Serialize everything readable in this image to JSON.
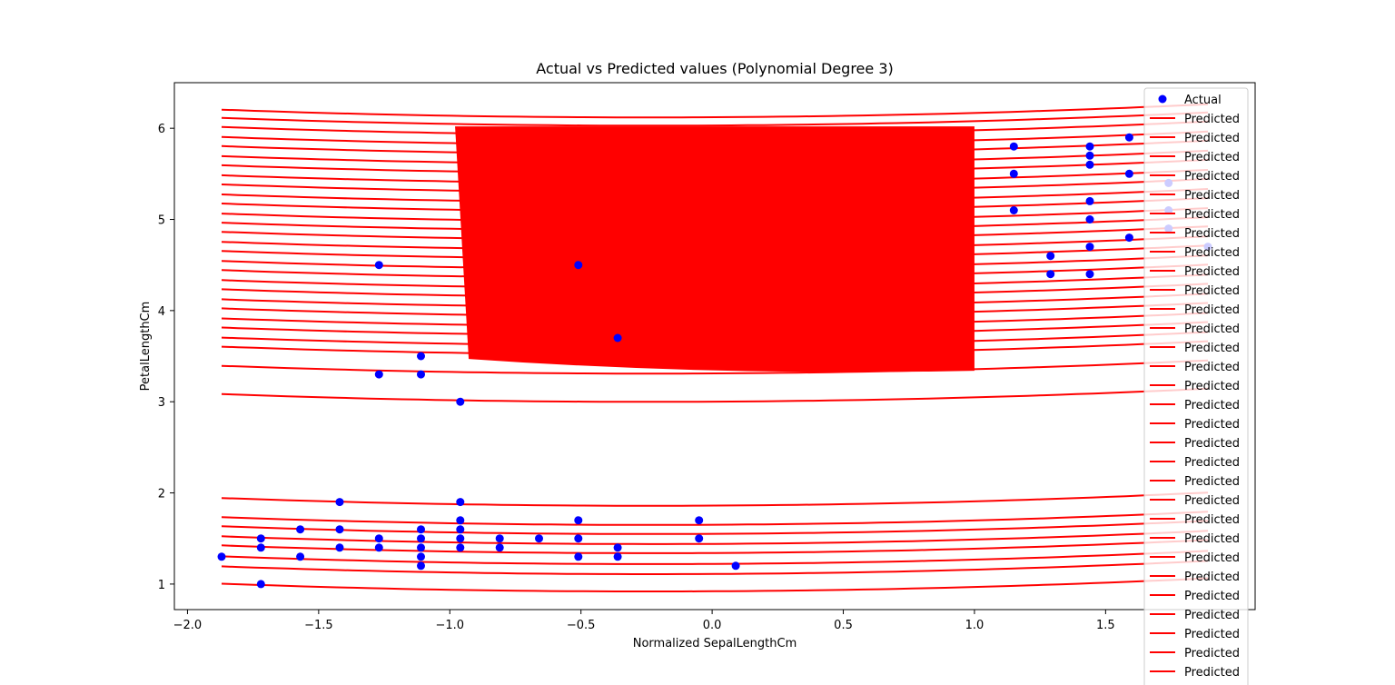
{
  "chart_data": {
    "type": "scatter",
    "title": "Actual vs Predicted values (Polynomial Degree 3)",
    "xlabel": "Normalized SepalLengthCm",
    "ylabel": "PetalLengthCm",
    "xlim": [
      -2.05,
      2.07
    ],
    "ylim": [
      0.72,
      6.5
    ],
    "xticks": [
      -2.0,
      -1.5,
      -1.0,
      -0.5,
      0.0,
      0.5,
      1.0,
      1.5
    ],
    "xtick_labels": [
      "−2.0",
      "−1.5",
      "−1.0",
      "−0.5",
      "0.0",
      "0.5",
      "1.0",
      "1.5"
    ],
    "yticks": [
      1,
      2,
      3,
      4,
      5,
      6
    ],
    "ytick_labels": [
      "1",
      "2",
      "3",
      "4",
      "5",
      "6"
    ],
    "grid": false,
    "legend_position": "top-right",
    "series": [
      {
        "name": "Actual",
        "kind": "scatter",
        "color": "#0000ff",
        "points": [
          [
            -1.87,
            1.3
          ],
          [
            -1.72,
            1.5
          ],
          [
            -1.72,
            1.4
          ],
          [
            -1.72,
            1.0
          ],
          [
            -1.57,
            1.6
          ],
          [
            -1.57,
            1.3
          ],
          [
            -1.42,
            1.9
          ],
          [
            -1.42,
            1.6
          ],
          [
            -1.42,
            1.4
          ],
          [
            -1.27,
            4.5
          ],
          [
            -1.27,
            3.3
          ],
          [
            -1.27,
            1.5
          ],
          [
            -1.27,
            1.4
          ],
          [
            -1.11,
            3.5
          ],
          [
            -1.11,
            3.3
          ],
          [
            -1.11,
            1.6
          ],
          [
            -1.11,
            1.5
          ],
          [
            -1.11,
            1.4
          ],
          [
            -1.11,
            1.3
          ],
          [
            -1.11,
            1.2
          ],
          [
            -0.96,
            3.0
          ],
          [
            -0.96,
            1.9
          ],
          [
            -0.96,
            1.7
          ],
          [
            -0.96,
            1.6
          ],
          [
            -0.96,
            1.5
          ],
          [
            -0.96,
            1.4
          ],
          [
            -0.81,
            1.5
          ],
          [
            -0.81,
            1.4
          ],
          [
            -0.66,
            1.5
          ],
          [
            -0.51,
            4.5
          ],
          [
            -0.51,
            1.7
          ],
          [
            -0.51,
            1.5
          ],
          [
            -0.51,
            1.3
          ],
          [
            -0.36,
            3.7
          ],
          [
            -0.36,
            1.4
          ],
          [
            -0.36,
            1.3
          ],
          [
            -0.05,
            1.7
          ],
          [
            -0.05,
            1.5
          ],
          [
            0.09,
            1.2
          ],
          [
            1.15,
            5.8
          ],
          [
            1.15,
            5.5
          ],
          [
            1.15,
            5.1
          ],
          [
            1.29,
            4.6
          ],
          [
            1.29,
            4.4
          ],
          [
            1.44,
            5.8
          ],
          [
            1.44,
            5.7
          ],
          [
            1.44,
            5.6
          ],
          [
            1.44,
            5.2
          ],
          [
            1.44,
            5.0
          ],
          [
            1.44,
            4.7
          ],
          [
            1.44,
            4.4
          ],
          [
            1.59,
            5.9
          ],
          [
            1.59,
            5.5
          ],
          [
            1.59,
            4.8
          ],
          [
            1.74,
            5.4
          ],
          [
            1.74,
            5.1
          ],
          [
            1.74,
            4.9
          ],
          [
            1.89,
            4.7
          ]
        ]
      },
      {
        "name": "Predicted",
        "kind": "line",
        "color": "#ff0000",
        "x_range": [
          -1.87,
          1.89
        ],
        "curve_levels_at_min_x": [
          1.04,
          1.23,
          1.34,
          1.46,
          1.56,
          1.67,
          1.77,
          1.98,
          3.12,
          3.43,
          3.64,
          3.74,
          3.85,
          3.95,
          4.06,
          4.16,
          4.27,
          4.37,
          4.48,
          4.58,
          4.69,
          4.79,
          4.9,
          5.0,
          5.1,
          5.21,
          5.31,
          5.42,
          5.52,
          5.63,
          5.73,
          5.84,
          5.94,
          6.05,
          6.15,
          6.24
        ],
        "dense_band": {
          "x": [
            -0.98,
            1.0
          ],
          "y": [
            3.42,
            6.02
          ]
        }
      }
    ],
    "legend": {
      "entries": [
        "Actual",
        "Predicted",
        "Predicted",
        "Predicted",
        "Predicted",
        "Predicted",
        "Predicted",
        "Predicted",
        "Predicted",
        "Predicted",
        "Predicted",
        "Predicted",
        "Predicted",
        "Predicted",
        "Predicted",
        "Predicted",
        "Predicted",
        "Predicted",
        "Predicted",
        "Predicted",
        "Predicted",
        "Predicted",
        "Predicted",
        "Predicted",
        "Predicted",
        "Predicted",
        "Predicted",
        "Predicted",
        "Predicted",
        "Predicted",
        "Predicted",
        "Predicted",
        "Predicted"
      ]
    }
  }
}
